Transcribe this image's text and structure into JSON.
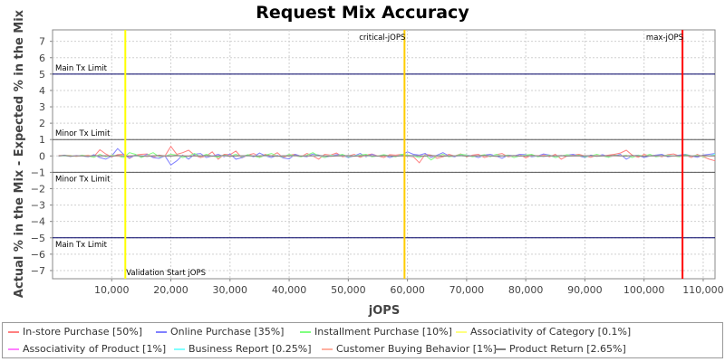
{
  "chart_data": {
    "type": "line",
    "title": "Request Mix Accuracy",
    "xlabel": "jOPS",
    "ylabel": "Actual % in the Mix - Expected % in the Mix",
    "xlim": [
      0,
      112000
    ],
    "ylim": [
      -7.5,
      7.7
    ],
    "xticks": [
      10000,
      20000,
      30000,
      40000,
      50000,
      60000,
      70000,
      80000,
      90000,
      100000,
      110000
    ],
    "xtick_labels": [
      "10,000",
      "20,000",
      "30,000",
      "40,000",
      "50,000",
      "60,000",
      "70,000",
      "80,000",
      "90,000",
      "100,000",
      "110,000"
    ],
    "yticks": [
      7,
      6,
      5,
      4,
      3,
      2,
      1,
      0,
      -1,
      -2,
      -3,
      -4,
      -5,
      -6,
      -7
    ],
    "ytick_labels": [
      "7",
      "6",
      "5",
      "4",
      "3",
      "2",
      "1",
      "0",
      "−1",
      "−2",
      "−3",
      "−4",
      "−5",
      "−6",
      "−7"
    ],
    "grid": true,
    "legend_position": "bottom",
    "horizontal_lines": [
      {
        "y": 5,
        "label": "Main Tx Limit",
        "color": "#000066"
      },
      {
        "y": 1,
        "label": "Minor Tx Limit",
        "color": "#555555"
      },
      {
        "y": -1,
        "label": "Minor Tx Limit",
        "color": "#555555"
      },
      {
        "y": -5,
        "label": "Main Tx Limit",
        "color": "#000066"
      }
    ],
    "vertical_lines": [
      {
        "x": 12300,
        "label": "Validation Start jOPS",
        "color": "#ffff00",
        "label_pos": "bottom"
      },
      {
        "x": 59500,
        "label": "critical-jOPS",
        "color": "#ffcc00",
        "label_pos": "top"
      },
      {
        "x": 106500,
        "label": "max-jOPS",
        "color": "#ff0000",
        "label_pos": "top"
      }
    ],
    "x": [
      1000,
      2000,
      3000,
      4000,
      5000,
      6000,
      7000,
      8000,
      9000,
      10000,
      11000,
      12000,
      13000,
      14000,
      15000,
      16000,
      17000,
      18000,
      19000,
      20000,
      21000,
      22000,
      23000,
      24000,
      25000,
      26000,
      27000,
      28000,
      29000,
      30000,
      31000,
      32000,
      33000,
      34000,
      35000,
      36000,
      37000,
      38000,
      39000,
      40000,
      41000,
      42000,
      43000,
      44000,
      45000,
      46000,
      47000,
      48000,
      49000,
      50000,
      51000,
      52000,
      53000,
      54000,
      55000,
      56000,
      57000,
      58000,
      59000,
      60000,
      61000,
      62000,
      63000,
      64000,
      65000,
      66000,
      67000,
      68000,
      69000,
      70000,
      71000,
      72000,
      73000,
      74000,
      75000,
      76000,
      77000,
      78000,
      79000,
      80000,
      81000,
      82000,
      83000,
      84000,
      85000,
      86000,
      87000,
      88000,
      89000,
      90000,
      91000,
      92000,
      93000,
      94000,
      95000,
      96000,
      97000,
      98000,
      99000,
      100000,
      101000,
      102000,
      103000,
      104000,
      105000,
      106000,
      107000,
      108000,
      109000,
      110000,
      111000,
      112000
    ],
    "series": [
      {
        "name": "In-store Purchase [50%]",
        "color": "#ff8080",
        "values": [
          0.03,
          0.02,
          0.04,
          -0.02,
          0.01,
          0.05,
          -0.03,
          0.38,
          0.12,
          -0.05,
          0.08,
          0.1,
          -0.15,
          0.05,
          0.1,
          0.12,
          -0.08,
          0.05,
          0.0,
          0.58,
          0.1,
          0.2,
          0.35,
          0.05,
          -0.1,
          0.0,
          0.25,
          -0.2,
          0.1,
          0.08,
          0.3,
          -0.12,
          0.05,
          0.15,
          -0.05,
          0.1,
          0.0,
          0.2,
          -0.1,
          0.05,
          0.1,
          -0.05,
          0.15,
          0.0,
          -0.2,
          0.1,
          0.05,
          0.18,
          -0.05,
          0.0,
          0.1,
          -0.08,
          0.05,
          0.12,
          0.0,
          -0.1,
          0.08,
          0.05,
          0.1,
          0.0,
          -0.05,
          -0.42,
          0.1,
          0.05,
          -0.15,
          -0.05,
          0.1,
          0.0,
          0.12,
          -0.05,
          0.05,
          0.1,
          -0.1,
          0.0,
          0.08,
          0.15,
          -0.05,
          0.0,
          0.1,
          -0.12,
          0.05,
          0.0,
          0.08,
          -0.05,
          0.1,
          -0.2,
          0.0,
          0.05,
          0.1,
          0.0,
          -0.08,
          0.05,
          0.0,
          0.05,
          0.1,
          0.18,
          0.35,
          0.05,
          -0.08,
          0.1,
          0.0,
          0.05,
          -0.05,
          0.08,
          0.12,
          0.0,
          0.05,
          -0.1,
          0.1,
          -0.05,
          -0.2,
          -0.3
        ]
      },
      {
        "name": "Online Purchase [35%]",
        "color": "#8080ff",
        "values": [
          -0.02,
          0.05,
          -0.03,
          0.02,
          0.0,
          -0.05,
          0.08,
          -0.1,
          -0.2,
          0.0,
          0.45,
          0.1,
          -0.12,
          0.05,
          -0.05,
          0.1,
          -0.1,
          -0.15,
          0.0,
          -0.55,
          -0.3,
          0.05,
          -0.2,
          0.1,
          0.15,
          -0.1,
          0.0,
          0.1,
          -0.05,
          0.12,
          -0.2,
          -0.1,
          0.05,
          -0.05,
          0.18,
          0.0,
          -0.1,
          0.05,
          -0.12,
          -0.18,
          0.1,
          0.0,
          -0.05,
          0.12,
          0.05,
          -0.1,
          0.0,
          0.08,
          0.05,
          -0.1,
          0.0,
          0.15,
          -0.05,
          0.1,
          0.0,
          0.05,
          -0.1,
          0.0,
          0.05,
          0.25,
          0.1,
          0.05,
          0.15,
          -0.1,
          0.05,
          0.2,
          0.0,
          -0.05,
          0.1,
          0.05,
          0.0,
          -0.1,
          0.05,
          0.1,
          0.0,
          -0.15,
          0.05,
          0.0,
          0.1,
          0.08,
          -0.05,
          0.0,
          0.12,
          0.05,
          -0.1,
          0.0,
          0.05,
          0.1,
          0.0,
          -0.1,
          0.05,
          0.0,
          0.08,
          -0.05,
          0.0,
          0.1,
          -0.2,
          0.0,
          0.05,
          -0.1,
          0.0,
          0.05,
          0.1,
          -0.05,
          0.0,
          0.05,
          0.1,
          0.0,
          -0.08,
          0.05,
          0.1,
          0.15
        ]
      },
      {
        "name": "Installment Purchase [10%]",
        "color": "#80ff80",
        "values": [
          0.0,
          0.02,
          0.03,
          -0.02,
          0.05,
          0.0,
          -0.08,
          0.1,
          -0.05,
          0.05,
          0.0,
          -0.1,
          0.2,
          0.1,
          -0.1,
          0.05,
          0.2,
          -0.05,
          0.0,
          0.1,
          0.05,
          -0.1,
          0.0,
          0.15,
          -0.05,
          0.1,
          0.0,
          -0.08,
          0.05,
          0.0,
          0.1,
          -0.05,
          0.08,
          0.0,
          -0.1,
          0.05,
          0.15,
          0.0,
          -0.05,
          0.1,
          0.0,
          -0.05,
          0.05,
          0.2,
          0.0,
          -0.1,
          0.05,
          0.0,
          0.1,
          -0.05,
          0.0,
          0.05,
          0.1,
          -0.05,
          0.0,
          0.08,
          0.0,
          -0.05,
          0.1,
          0.05,
          0.0,
          -0.1,
          0.05,
          -0.25,
          0.0,
          0.1,
          -0.05,
          0.0,
          0.1,
          0.05,
          -0.05,
          0.0,
          0.08,
          -0.05,
          0.1,
          0.0,
          0.05,
          -0.1,
          0.0,
          0.05,
          0.1,
          -0.05,
          0.0,
          0.05,
          -0.1,
          0.0,
          0.08,
          0.0,
          0.05,
          -0.05,
          0.0,
          0.1,
          0.0,
          -0.08,
          0.05,
          0.0,
          0.05,
          -0.1,
          0.05,
          0.0,
          0.1,
          -0.05,
          0.0,
          0.05,
          0.0,
          -0.05,
          0.08,
          0.0,
          0.05,
          -0.05,
          0.0,
          0.05
        ]
      },
      {
        "name": "Associativity of Category [0.1%]",
        "color": "#ffff80",
        "values": [
          0,
          0.01,
          0,
          -0.01,
          0,
          0.01,
          0,
          0,
          -0.01,
          0,
          0.01,
          0,
          0,
          0.01,
          0,
          -0.01,
          0,
          0,
          0.01,
          0,
          0,
          -0.01,
          0,
          0,
          0.01,
          0,
          0,
          0,
          -0.01,
          0,
          0.01,
          0,
          0,
          0,
          -0.01,
          0,
          0,
          0.01,
          0,
          0,
          0,
          -0.01,
          0,
          0.01,
          0,
          0,
          0,
          0,
          0.01,
          0,
          -0.01,
          0,
          0,
          0.01,
          0,
          0,
          0,
          -0.01,
          0,
          0,
          0.01,
          0,
          0,
          0,
          -0.01,
          0,
          0,
          0.01,
          0,
          0,
          0,
          0,
          -0.01,
          0,
          0.01,
          0,
          0,
          0,
          -0.01,
          0,
          0,
          0.01,
          0,
          0,
          0,
          0,
          -0.01,
          0,
          0,
          0.01,
          0,
          0,
          0,
          -0.01,
          0,
          0,
          0.01,
          0,
          0,
          0,
          0,
          0,
          -0.01,
          0,
          0.01,
          0,
          0,
          0,
          0,
          0,
          0,
          0
        ]
      },
      {
        "name": "Associativity of Product [1%]",
        "color": "#ff80ff",
        "values": [
          0,
          0.02,
          -0.01,
          0.01,
          0,
          -0.02,
          0.01,
          0,
          0.02,
          -0.01,
          0,
          0.01,
          -0.02,
          0,
          0.01,
          0.02,
          0,
          -0.01,
          0,
          0.02,
          -0.01,
          0,
          0.01,
          0,
          -0.02,
          0.01,
          0,
          0.02,
          -0.01,
          0,
          0.01,
          0,
          -0.01,
          0.02,
          0,
          0,
          -0.01,
          0.01,
          0,
          0.02,
          0,
          -0.01,
          0,
          0.01,
          0,
          -0.02,
          0.01,
          0,
          0.01,
          0,
          -0.01,
          0,
          0.02,
          0,
          -0.01,
          0.01,
          0,
          0,
          0.01,
          -0.01,
          0,
          0.02,
          0,
          -0.01,
          0,
          0.01,
          0,
          -0.01,
          0.01,
          0,
          0,
          0.02,
          -0.01,
          0,
          0.01,
          0,
          -0.01,
          0,
          0.01,
          0,
          0.02,
          -0.01,
          0,
          0,
          0.01,
          -0.01,
          0,
          0.01,
          0,
          0,
          -0.01,
          0.02,
          0,
          0.01,
          -0.01,
          0,
          0,
          0.01,
          0,
          -0.01,
          0.01,
          0,
          0,
          0.01,
          -0.01,
          0,
          0.01,
          0,
          0,
          -0.01,
          0,
          0
        ]
      },
      {
        "name": "Business Report [0.25%]",
        "color": "#80ffff",
        "values": [
          0,
          0.01,
          0,
          -0.01,
          0.01,
          0,
          0,
          -0.01,
          0,
          0.01,
          0,
          0,
          -0.01,
          0.01,
          0,
          0,
          0.01,
          -0.01,
          0,
          0,
          0.01,
          0,
          -0.01,
          0,
          0.01,
          0,
          0,
          -0.01,
          0,
          0.01,
          0,
          0,
          -0.01,
          0,
          0.01,
          0,
          0,
          0.01,
          -0.01,
          0,
          0,
          0.01,
          0,
          -0.01,
          0,
          0,
          0.01,
          0,
          0,
          -0.01,
          0.01,
          0,
          0,
          0,
          -0.01,
          0.01,
          0,
          0,
          0.01,
          0,
          -0.01,
          0,
          0.01,
          0,
          0,
          -0.01,
          0,
          0.01,
          0,
          0,
          -0.01,
          0,
          0.01,
          0,
          0,
          0,
          -0.01,
          0.01,
          0,
          0,
          0.01,
          0,
          -0.01,
          0,
          0,
          0.01,
          0,
          0,
          -0.01,
          0,
          0.01,
          0,
          0,
          -0.01,
          0,
          0.01,
          0,
          0,
          0,
          -0.01,
          0.01,
          0,
          0,
          0.01,
          0,
          -0.01,
          0,
          0,
          0.01,
          0,
          0,
          0.12
        ]
      },
      {
        "name": "Customer Buying Behavior [1%]",
        "color": "#ffb0a0",
        "values": [
          0,
          0.02,
          0,
          -0.02,
          0.01,
          0,
          0.02,
          -0.01,
          0,
          0.01,
          -0.02,
          0,
          0.01,
          0.02,
          -0.01,
          0,
          0.01,
          0,
          -0.02,
          0.01,
          0,
          0.02,
          0,
          -0.01,
          0.01,
          0,
          -0.02,
          0.01,
          0,
          0.02,
          -0.01,
          0,
          0.01,
          0,
          -0.01,
          0.02,
          0,
          0,
          -0.02,
          0.01,
          0,
          0.01,
          -0.01,
          0,
          0.02,
          0,
          -0.01,
          0.01,
          0,
          0,
          -0.02,
          0.01,
          0,
          0.02,
          0,
          -0.01,
          0,
          0.01,
          0,
          -0.01,
          0.02,
          0,
          0,
          0.01,
          -0.02,
          0,
          0.01,
          0,
          0.02,
          -0.01,
          0,
          0,
          0.01,
          0,
          -0.02,
          0.01,
          0,
          0,
          0.01,
          -0.01,
          0,
          0.02,
          0,
          -0.01,
          0,
          0.01,
          0,
          0,
          -0.01,
          0.02,
          0,
          0,
          0.01,
          -0.01,
          0,
          0.01,
          0,
          0,
          -0.02,
          0.01,
          0,
          0,
          0.01,
          0,
          -0.01,
          0,
          0.01,
          0,
          0,
          -0.01,
          0,
          0
        ]
      },
      {
        "name": "Product Return [2.65%]",
        "color": "#808080",
        "values": [
          0,
          0.03,
          -0.02,
          0.01,
          0,
          -0.03,
          0.02,
          0,
          0.01,
          -0.02,
          0.03,
          0,
          -0.01,
          0.02,
          0,
          -0.03,
          0.01,
          0.02,
          0,
          -0.01,
          0.03,
          0,
          -0.02,
          0.01,
          0,
          0.02,
          -0.01,
          0,
          0.03,
          -0.02,
          0,
          0.01,
          0.02,
          -0.01,
          0,
          0.03,
          0,
          -0.02,
          0.01,
          0,
          0.02,
          -0.01,
          0,
          0.01,
          0.03,
          0,
          -0.02,
          0,
          0.01,
          0.02,
          -0.01,
          0,
          0.03,
          0,
          -0.01,
          0.02,
          0,
          -0.02,
          0.01,
          0,
          0.02,
          0,
          -0.01,
          0.03,
          0,
          -0.02,
          0.01,
          0,
          0.02,
          -0.01,
          0,
          0.01,
          0.03,
          0,
          -0.02,
          0,
          0.01,
          0.02,
          -0.01,
          0,
          0.02,
          0,
          -0.03,
          0.01,
          0,
          0.02,
          -0.01,
          0,
          0.01,
          0,
          0.02,
          -0.02,
          0,
          0.01,
          0.03,
          0,
          -0.01,
          0.02,
          0,
          -0.02,
          0.01,
          0,
          0.02,
          -0.01,
          0,
          0.01,
          0.02,
          0,
          -0.01,
          0.03,
          0,
          0
        ]
      }
    ]
  }
}
